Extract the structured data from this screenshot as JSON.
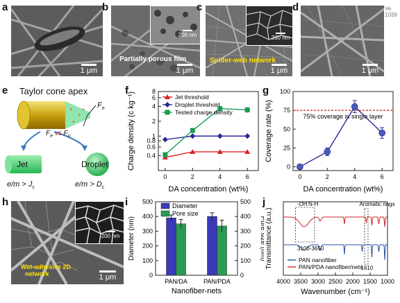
{
  "side_label": "Ve\n1039",
  "panels": {
    "a": {
      "letter": "a",
      "scale": "1 μm"
    },
    "b": {
      "letter": "b",
      "scale": "1 μm",
      "inset_scale": "200 nm",
      "caption": "Partially porous film"
    },
    "c": {
      "letter": "c",
      "scale": "1 μm",
      "inset_scale": "200 nm",
      "caption": "Spider-web network"
    },
    "d": {
      "letter": "d",
      "scale": "1 μm"
    },
    "e": {
      "letter": "e",
      "title": "Taylor cone apex",
      "fe": "F",
      "fe_sub": "e",
      "fv": "F",
      "fv_sub": "v",
      "versus": "vs",
      "jet": "Jet",
      "droplet": "Droplet",
      "jet_cond": "e/m > J",
      "jet_cond_sub": "c",
      "drop_cond": "e/m > D",
      "drop_cond_sub": "c"
    },
    "f": {
      "letter": "f"
    },
    "g": {
      "letter": "g",
      "annotation": "75% coverage in single layer"
    },
    "h": {
      "letter": "h",
      "scale": "1 μm",
      "inset_scale": "200 nm",
      "caption_line1": "Wet-adhesive 2D",
      "caption_line2": "network"
    },
    "i": {
      "letter": "i"
    },
    "j": {
      "letter": "j",
      "ann_oh": "-OH",
      "ann_nh": "N-H",
      "ann_arom": "Aromatic rings",
      "ann_range": "3100-3650",
      "ann_1610": "1610"
    }
  },
  "chart_data": [
    {
      "id": "f",
      "type": "line",
      "xlabel": "DA concentration (wt%)",
      "ylabel": "Charge density (c kg⁻¹)",
      "x": [
        0,
        2,
        4,
        6
      ],
      "xlim": [
        -0.5,
        6.8
      ],
      "ylim": [
        0.2,
        8
      ],
      "yscale": "log",
      "yticks": [
        0.4,
        0.6,
        0.8,
        1,
        2,
        4,
        6,
        8
      ],
      "ytick_labels": [
        "0.4",
        "0.6",
        "0.8",
        "1",
        "2",
        "4",
        "6",
        "8"
      ],
      "xticks": [
        0,
        2,
        4,
        6
      ],
      "legend": "top-left",
      "series": [
        {
          "name": "Jet threshold",
          "color": "#e02020",
          "marker": "triangle",
          "values": [
            0.37,
            0.48,
            0.48,
            0.48
          ]
        },
        {
          "name": "Droplet threshold",
          "color": "#28289a",
          "marker": "diamond",
          "values": [
            0.85,
            1.0,
            1.0,
            1.0
          ]
        },
        {
          "name": "Tested charge density",
          "color": "#1a9a50",
          "marker": "square",
          "values": [
            0.42,
            1.3,
            3.6,
            3.4
          ],
          "errors": [
            0.05,
            0.15,
            0.5,
            0.45
          ]
        }
      ]
    },
    {
      "id": "g",
      "type": "line",
      "xlabel": "DA concentration (wt%)",
      "ylabel": "Coverage rate (%)",
      "x": [
        0,
        2,
        4,
        6
      ],
      "xlim": [
        -0.5,
        6.8
      ],
      "ylim": [
        -5,
        100
      ],
      "yticks": [
        0,
        25,
        50,
        75,
        100
      ],
      "xticks": [
        0,
        2,
        4,
        6
      ],
      "reference_line": 75,
      "series": [
        {
          "color": "#28289a",
          "values": [
            0,
            20,
            80,
            45
          ],
          "errors": [
            1,
            5,
            8,
            7
          ]
        }
      ]
    },
    {
      "id": "i",
      "type": "bar",
      "xlabel": "Nanofiber-nets",
      "ylabel": "Diameter (nm)",
      "ylabel_right": "Pore size (nm)",
      "categories": [
        "PAN/DA",
        "PAN/PDA"
      ],
      "ylim": [
        0,
        500
      ],
      "yticks": [
        0,
        100,
        200,
        300,
        400,
        500
      ],
      "legend": "top-left",
      "series": [
        {
          "name": "Diameter",
          "color": "#3a3ab8",
          "axis": "left",
          "values": [
            390,
            400
          ],
          "errors": [
            20,
            25
          ]
        },
        {
          "name": "Pore size",
          "color": "#2a9a55",
          "axis": "right",
          "values": [
            350,
            335
          ],
          "errors": [
            30,
            40
          ]
        }
      ]
    },
    {
      "id": "j",
      "type": "line",
      "xlabel": "Wavenumber (cm⁻¹)",
      "ylabel": "Transmittance (a.u.)",
      "xticks": [
        4000,
        3500,
        3000,
        2500,
        2000,
        1500,
        1000
      ],
      "xlim": [
        4000,
        1000
      ],
      "legend": "bottom-left",
      "series": [
        {
          "name": "PAN nanofiber",
          "color": "#2050a0"
        },
        {
          "name": "PAN/PDA nanofiber/nets",
          "color": "#d02020"
        }
      ]
    }
  ]
}
